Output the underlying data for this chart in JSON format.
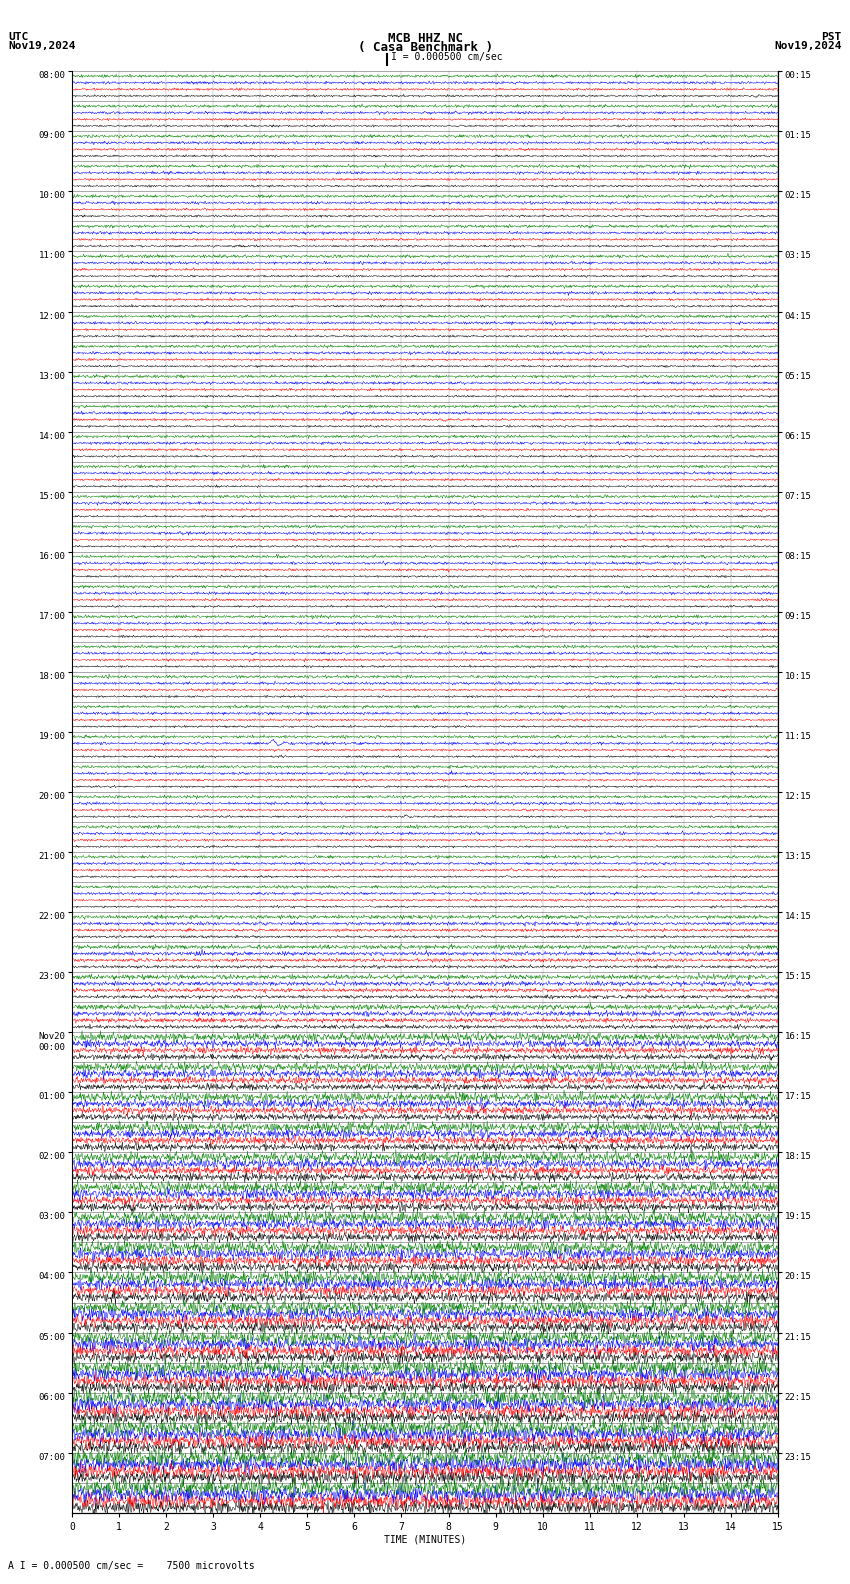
{
  "title_line1": "MCB HHZ NC",
  "title_line2": "( Casa Benchmark )",
  "title_scale": "I = 0.000500 cm/sec",
  "left_label_top": "UTC",
  "left_label_date": "Nov19,2024",
  "right_label_top": "PST",
  "right_label_date": "Nov19,2024",
  "bottom_label": "TIME (MINUTES)",
  "bottom_note": "A I = 0.000500 cm/sec =    7500 microvolts",
  "utc_labels_even": [
    "08:00",
    "09:00",
    "10:00",
    "11:00",
    "12:00",
    "13:00",
    "14:00",
    "15:00",
    "16:00",
    "17:00",
    "18:00",
    "19:00",
    "20:00",
    "21:00",
    "22:00",
    "23:00",
    "Nov20\n00:00",
    "01:00",
    "02:00",
    "03:00",
    "04:00",
    "05:00",
    "06:00",
    "07:00"
  ],
  "pst_labels_even": [
    "00:15",
    "01:15",
    "02:15",
    "03:15",
    "04:15",
    "05:15",
    "06:15",
    "07:15",
    "08:15",
    "09:15",
    "10:15",
    "11:15",
    "12:15",
    "13:15",
    "14:15",
    "15:15",
    "16:15",
    "17:15",
    "18:15",
    "19:15",
    "20:15",
    "21:15",
    "22:15",
    "23:15"
  ],
  "n_rows": 48,
  "traces_per_row": 4,
  "minutes_per_row": 15,
  "x_ticks": [
    0,
    1,
    2,
    3,
    4,
    5,
    6,
    7,
    8,
    9,
    10,
    11,
    12,
    13,
    14,
    15
  ],
  "bg_color": "#ffffff",
  "trace_colors": [
    "#000000",
    "#ff0000",
    "#0000ff",
    "#008000"
  ],
  "fig_width": 8.5,
  "fig_height": 15.84,
  "dpi": 100
}
